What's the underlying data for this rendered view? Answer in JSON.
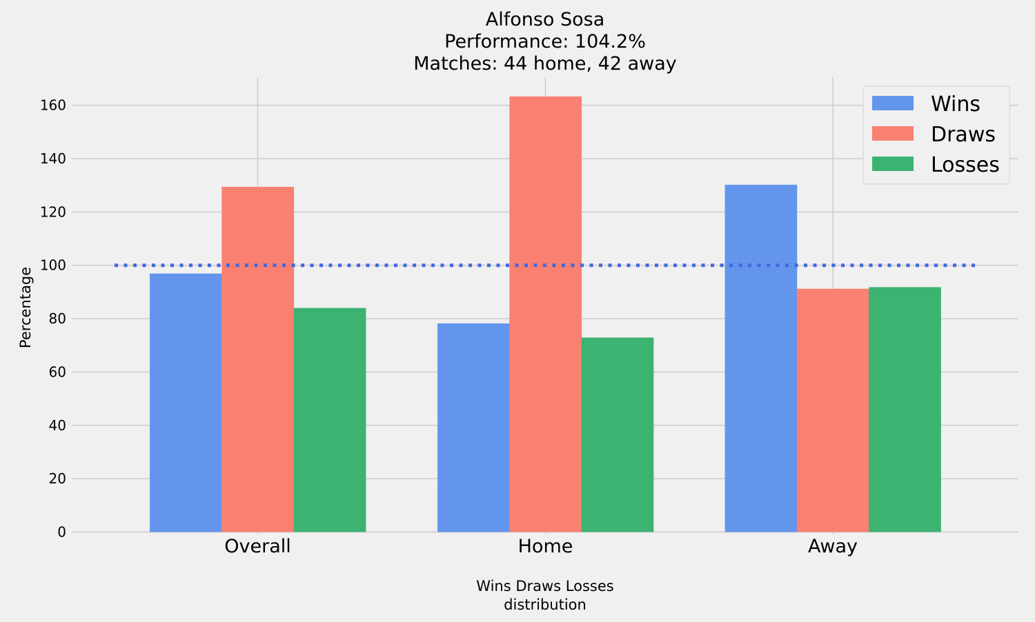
{
  "chart_data": {
    "type": "bar",
    "title_lines": [
      "Alfonso Sosa",
      "Performance: 104.2%",
      "Matches: 44 home, 42 away"
    ],
    "categories": [
      "Overall",
      "Home",
      "Away"
    ],
    "series": [
      {
        "name": "Wins",
        "color": "#6495ED",
        "values": [
          96.9,
          78.2,
          130.2
        ]
      },
      {
        "name": "Draws",
        "color": "#FA8072",
        "values": [
          129.4,
          163.3,
          91.2
        ]
      },
      {
        "name": "Losses",
        "color": "#3CB371",
        "values": [
          84.0,
          72.9,
          91.8
        ]
      }
    ],
    "reference_line": {
      "value": 100,
      "color": "#4169E1",
      "style": "dotted"
    },
    "xlabel_lines": [
      "Wins Draws Losses",
      "distribution"
    ],
    "ylabel": "Percentage",
    "ylim": [
      0,
      172
    ],
    "yticks": [
      0,
      20,
      40,
      60,
      80,
      100,
      120,
      140,
      160
    ],
    "grid": true,
    "legend_position": "top-right"
  }
}
